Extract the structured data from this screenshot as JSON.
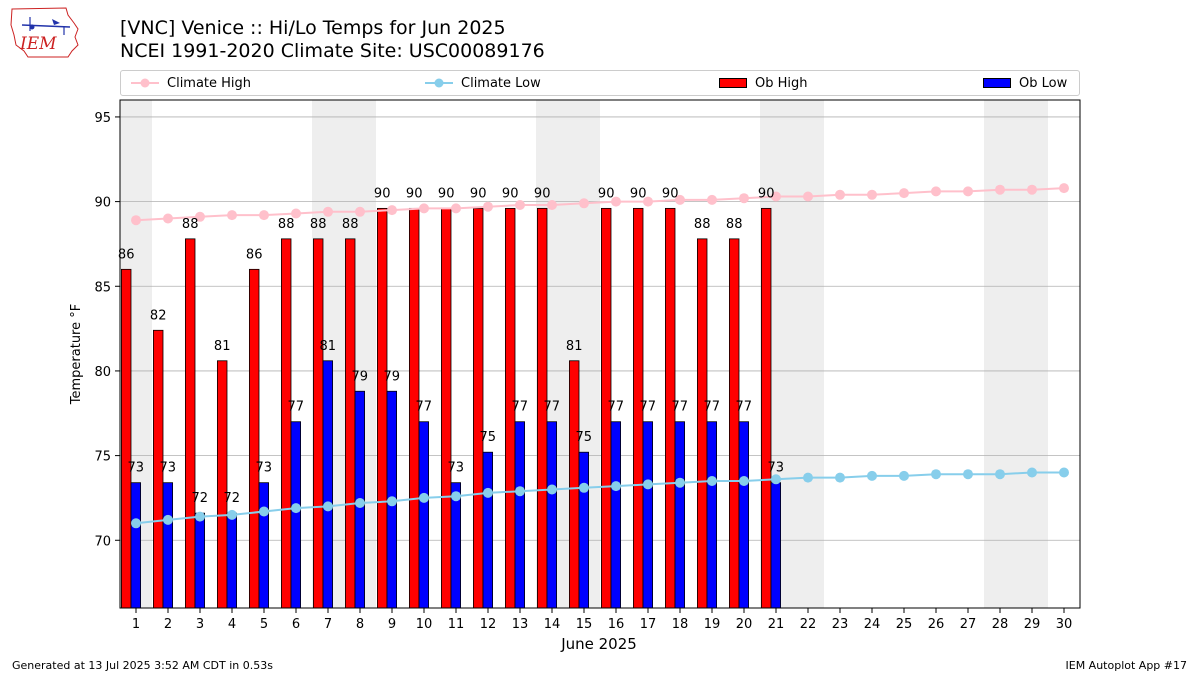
{
  "header": {
    "title_line1": "[VNC] Venice :: Hi/Lo Temps for Jun 2025",
    "title_line2": "NCEI 1991-2020 Climate Site: USC00089176"
  },
  "logo": {
    "text": "IEM"
  },
  "footer": {
    "left": "Generated at 13 Jul 2025 3:52 AM CDT in 0.53s",
    "right": "IEM Autoplot App #17"
  },
  "colors": {
    "climate_high": "#ffc0cb",
    "climate_low": "#87ceeb",
    "ob_high": "#ff0000",
    "ob_low": "#0000ff",
    "weekend_shade": "#eeeeee",
    "grid": "#b0b0b0"
  },
  "chart_data": {
    "type": "bar",
    "xlabel": "June 2025",
    "ylabel": "Temperature °F",
    "ylim": [
      66,
      96
    ],
    "yticks": [
      70,
      75,
      80,
      85,
      90,
      95
    ],
    "categories": [
      "1",
      "2",
      "3",
      "4",
      "5",
      "6",
      "7",
      "8",
      "9",
      "10",
      "11",
      "12",
      "13",
      "14",
      "15",
      "16",
      "17",
      "18",
      "19",
      "20",
      "21",
      "22",
      "23",
      "24",
      "25",
      "26",
      "27",
      "28",
      "29",
      "30"
    ],
    "weekend_days": [
      1,
      7,
      8,
      14,
      15,
      21,
      22,
      28,
      29
    ],
    "grid": "horizontal",
    "legend_position": "top",
    "series": [
      {
        "name": "Climate High",
        "kind": "line",
        "values": [
          88.9,
          89.0,
          89.1,
          89.2,
          89.2,
          89.3,
          89.4,
          89.4,
          89.5,
          89.6,
          89.6,
          89.7,
          89.8,
          89.8,
          89.9,
          90.0,
          90.0,
          90.1,
          90.1,
          90.2,
          90.3,
          90.3,
          90.4,
          90.4,
          90.5,
          90.6,
          90.6,
          90.7,
          90.7,
          90.8
        ]
      },
      {
        "name": "Climate Low",
        "kind": "line",
        "values": [
          71.0,
          71.2,
          71.4,
          71.5,
          71.7,
          71.9,
          72.0,
          72.2,
          72.3,
          72.5,
          72.6,
          72.8,
          72.9,
          73.0,
          73.1,
          73.2,
          73.3,
          73.4,
          73.5,
          73.5,
          73.6,
          73.7,
          73.7,
          73.8,
          73.8,
          73.9,
          73.9,
          73.9,
          74.0,
          74.0
        ]
      },
      {
        "name": "Ob High",
        "kind": "bar",
        "values": [
          86,
          82,
          88,
          81,
          86,
          88,
          88,
          88,
          90,
          90,
          90,
          90,
          90,
          90,
          81,
          90,
          90,
          90,
          88,
          88,
          90,
          null,
          null,
          null,
          null,
          null,
          null,
          null,
          null,
          null
        ],
        "bar_tops": [
          86.0,
          82.4,
          87.8,
          80.6,
          86.0,
          87.8,
          87.8,
          87.8,
          89.6,
          89.6,
          89.6,
          89.6,
          89.6,
          89.6,
          80.6,
          89.6,
          89.6,
          89.6,
          87.8,
          87.8,
          89.6,
          null,
          null,
          null,
          null,
          null,
          null,
          null,
          null,
          null
        ]
      },
      {
        "name": "Ob Low",
        "kind": "bar",
        "values": [
          73,
          73,
          72,
          72,
          73,
          77,
          81,
          79,
          79,
          77,
          73,
          75,
          77,
          77,
          75,
          77,
          77,
          77,
          77,
          77,
          73,
          null,
          null,
          null,
          null,
          null,
          null,
          null,
          null,
          null
        ],
        "bar_tops": [
          73.4,
          73.4,
          71.6,
          71.6,
          73.4,
          77.0,
          80.6,
          78.8,
          78.8,
          77.0,
          73.4,
          75.2,
          77.0,
          77.0,
          75.2,
          77.0,
          77.0,
          77.0,
          77.0,
          77.0,
          73.4,
          null,
          null,
          null,
          null,
          null,
          null,
          null,
          null,
          null
        ]
      }
    ]
  }
}
